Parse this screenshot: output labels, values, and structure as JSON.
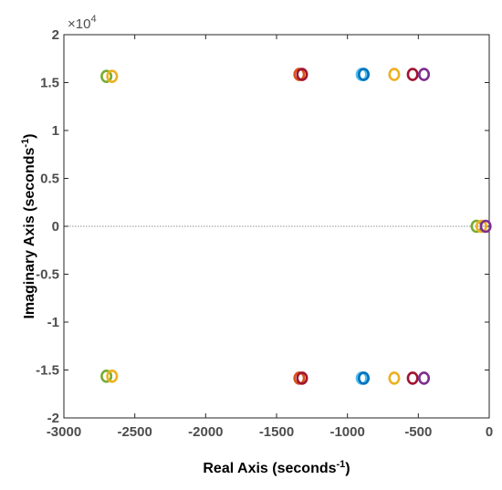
{
  "chart_data": {
    "type": "scatter",
    "title": "",
    "xlabel": "Real Axis (seconds",
    "xlabel_sup": "-1",
    "xlabel_end": ")",
    "ylabel": "Imaginary Axis (seconds",
    "ylabel_sup": "-1",
    "ylabel_end": ")",
    "y_exponent_base": "×10",
    "y_exponent_power": "4",
    "xlim": [
      -3000,
      0
    ],
    "ylim": [
      -20000,
      20000
    ],
    "x_ticks": [
      -3000,
      -2500,
      -2000,
      -1500,
      -1000,
      -500,
      0
    ],
    "x_tick_labels": [
      "-3000",
      "-2500",
      "-2000",
      "-1500",
      "-1000",
      "-500",
      "0"
    ],
    "y_ticks": [
      -20000,
      -15000,
      -10000,
      -5000,
      0,
      5000,
      10000,
      15000,
      20000
    ],
    "y_tick_labels": [
      "-2",
      "-1.5",
      "-1",
      "-0.5",
      "0",
      "0.5",
      "1",
      "1.5",
      "2"
    ],
    "grid": false,
    "zero_line": true,
    "marker": "circle-open",
    "series": [
      {
        "color": "#77ac30",
        "points": [
          [
            -2700,
            15650
          ],
          [
            -2700,
            -15650
          ],
          [
            -90,
            0
          ]
        ]
      },
      {
        "color": "#edb120",
        "points": [
          [
            -2660,
            15650
          ],
          [
            -2660,
            -15650
          ],
          [
            -670,
            15850
          ],
          [
            -670,
            -15850
          ],
          [
            -55,
            0
          ]
        ]
      },
      {
        "color": "#d95319",
        "points": [
          [
            -1340,
            15850
          ],
          [
            -1340,
            -15850
          ]
        ]
      },
      {
        "color": "#a2142f",
        "points": [
          [
            -1320,
            15850
          ],
          [
            -1320,
            -15850
          ],
          [
            -540,
            15850
          ],
          [
            -540,
            -15850
          ]
        ]
      },
      {
        "color": "#4dbeee",
        "points": [
          [
            -900,
            15850
          ],
          [
            -900,
            -15850
          ]
        ]
      },
      {
        "color": "#0072bd",
        "points": [
          [
            -885,
            15850
          ],
          [
            -885,
            -15850
          ]
        ]
      },
      {
        "color": "#7e2f8e",
        "points": [
          [
            -460,
            15850
          ],
          [
            -460,
            -15850
          ],
          [
            -25,
            0
          ]
        ]
      }
    ]
  }
}
